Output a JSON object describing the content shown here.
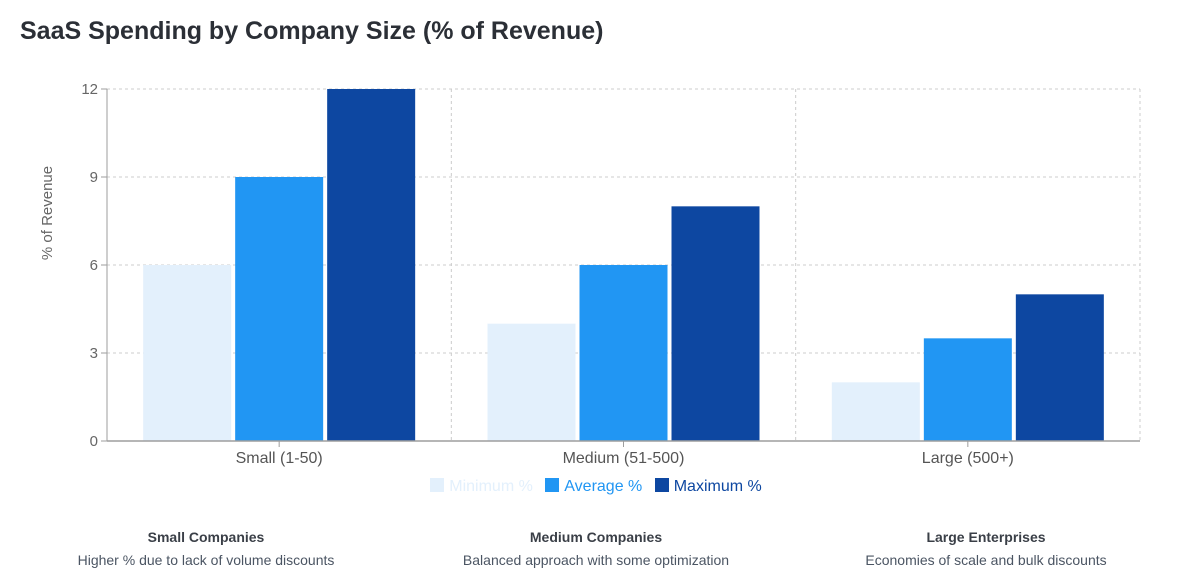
{
  "chart_data": {
    "type": "bar",
    "title": "SaaS Spending by Company Size (% of Revenue)",
    "xlabel": "",
    "ylabel": "% of Revenue",
    "ylim": [
      0,
      12
    ],
    "yticks": [
      0,
      3,
      6,
      9,
      12
    ],
    "grid": true,
    "legend": "bottom-center",
    "categories": [
      "Small (1-50)",
      "Medium (51-500)",
      "Large (500+)"
    ],
    "series": [
      {
        "name": "Minimum %",
        "color": "#e3f0fc",
        "values": [
          6,
          4,
          2
        ]
      },
      {
        "name": "Average %",
        "color": "#2196f3",
        "values": [
          9,
          6,
          3.5
        ]
      },
      {
        "name": "Maximum %",
        "color": "#0d47a1",
        "values": [
          12,
          8,
          5
        ]
      }
    ]
  },
  "notes": [
    {
      "title": "Small Companies",
      "text": "Higher % due to lack of volume discounts"
    },
    {
      "title": "Medium Companies",
      "text": "Balanced approach with some optimization"
    },
    {
      "title": "Large Enterprises",
      "text": "Economies of scale and bulk discounts"
    }
  ]
}
